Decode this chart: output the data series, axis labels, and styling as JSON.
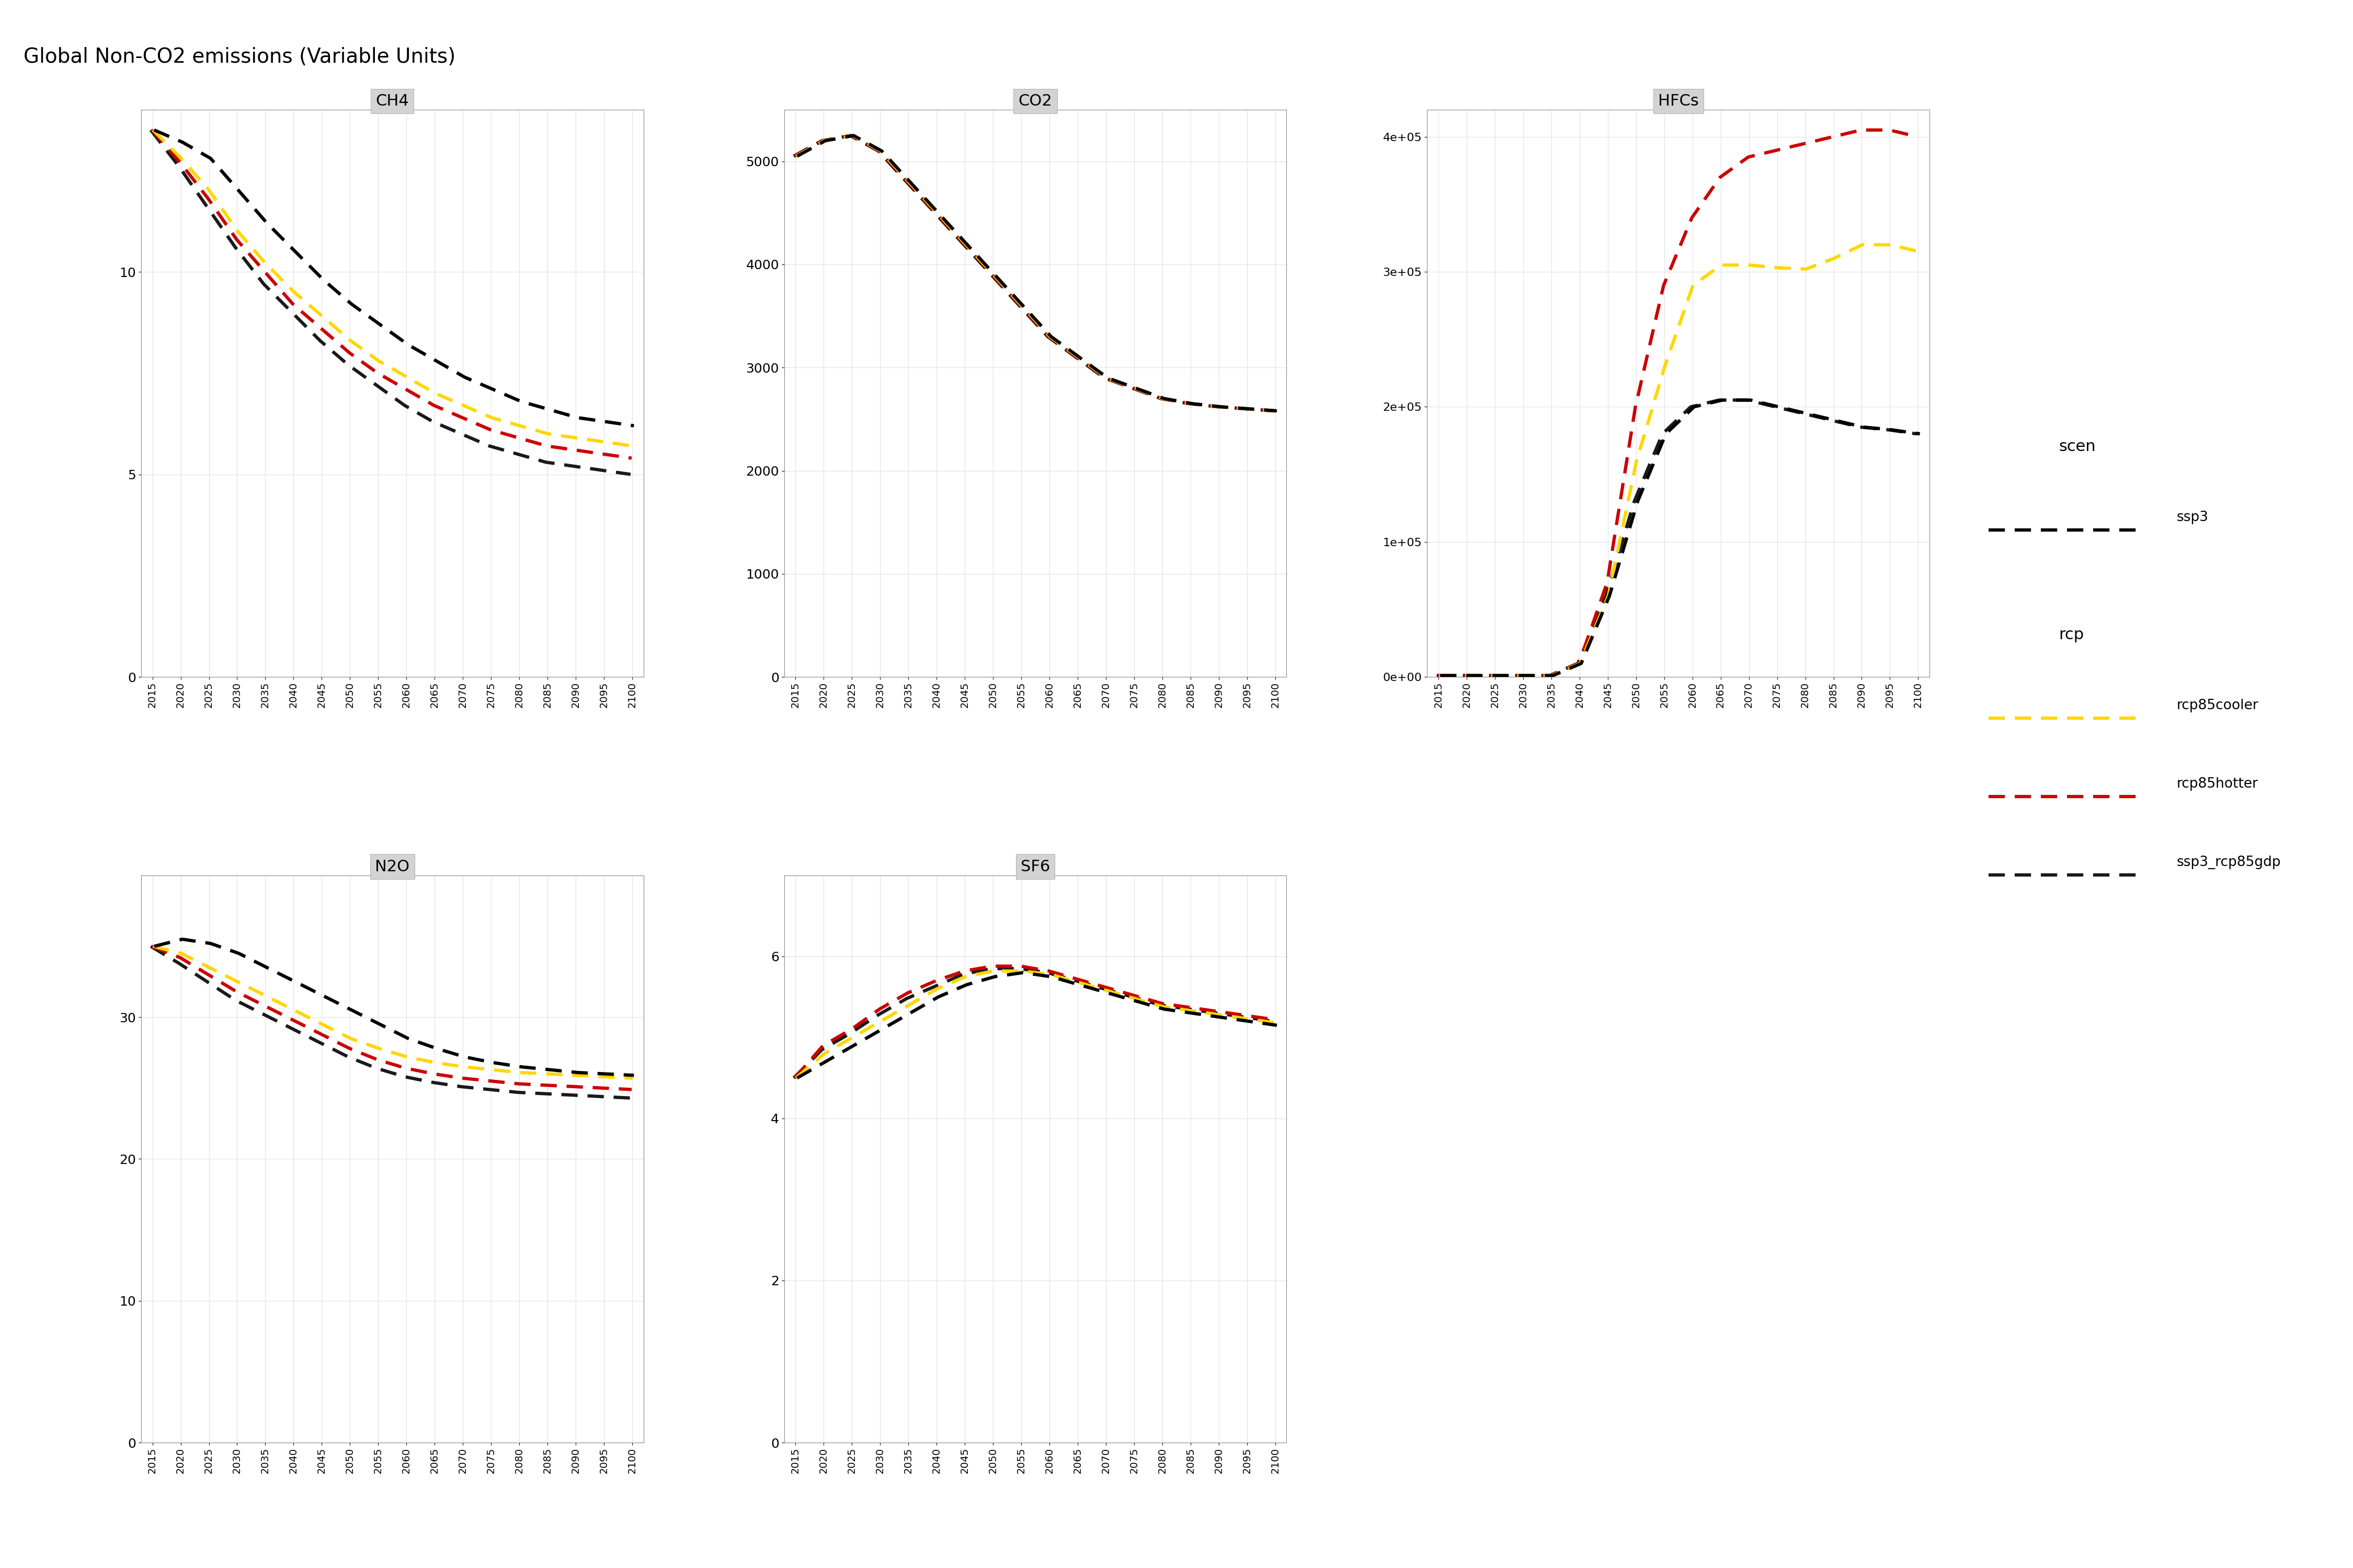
{
  "title": "Global Non-CO2 emissions (Variable Units)",
  "years": [
    2015,
    2020,
    2025,
    2030,
    2035,
    2040,
    2045,
    2050,
    2055,
    2060,
    2065,
    2070,
    2075,
    2080,
    2085,
    2090,
    2095,
    2100
  ],
  "subplots": {
    "CH4": {
      "ylim": [
        0,
        14
      ],
      "yticks": [
        0,
        5,
        10
      ],
      "ssp3": [
        13.5,
        13.2,
        12.8,
        12.0,
        11.2,
        10.5,
        9.8,
        9.2,
        8.7,
        8.2,
        7.8,
        7.4,
        7.1,
        6.8,
        6.6,
        6.4,
        6.3,
        6.2
      ],
      "rcp85cooler": [
        13.5,
        12.8,
        12.0,
        11.0,
        10.2,
        9.5,
        8.9,
        8.3,
        7.8,
        7.4,
        7.0,
        6.7,
        6.4,
        6.2,
        6.0,
        5.9,
        5.8,
        5.7
      ],
      "rcp85hotter": [
        13.5,
        12.7,
        11.8,
        10.8,
        10.0,
        9.2,
        8.6,
        8.0,
        7.5,
        7.1,
        6.7,
        6.4,
        6.1,
        5.9,
        5.7,
        5.6,
        5.5,
        5.4
      ],
      "ssp3_rcp85gdp": [
        13.5,
        12.6,
        11.6,
        10.6,
        9.7,
        9.0,
        8.3,
        7.7,
        7.2,
        6.7,
        6.3,
        6.0,
        5.7,
        5.5,
        5.3,
        5.2,
        5.1,
        5.0
      ]
    },
    "CO2": {
      "ylim": [
        0,
        5500
      ],
      "yticks": [
        0,
        1000,
        2000,
        3000,
        4000,
        5000
      ],
      "ssp3": [
        5050,
        5200,
        5250,
        5100,
        4800,
        4500,
        4200,
        3900,
        3600,
        3300,
        3100,
        2900,
        2800,
        2700,
        2650,
        2620,
        2600,
        2580
      ],
      "rcp85cooler": [
        5050,
        5200,
        5250,
        5100,
        4800,
        4500,
        4200,
        3900,
        3600,
        3300,
        3100,
        2900,
        2800,
        2700,
        2650,
        2620,
        2600,
        2580
      ],
      "rcp85hotter": [
        5050,
        5200,
        5250,
        5100,
        4800,
        4500,
        4200,
        3900,
        3600,
        3300,
        3100,
        2900,
        2800,
        2700,
        2650,
        2620,
        2600,
        2580
      ],
      "ssp3_rcp85gdp": [
        5050,
        5200,
        5250,
        5100,
        4800,
        4500,
        4200,
        3900,
        3600,
        3300,
        3100,
        2900,
        2800,
        2700,
        2650,
        2620,
        2600,
        2580
      ]
    },
    "HFCs": {
      "ylim": [
        0,
        420000
      ],
      "yticks": [
        0,
        100000,
        200000,
        300000,
        400000
      ],
      "ssp3": [
        1000,
        1000,
        1000,
        1000,
        1000,
        10000,
        60000,
        130000,
        180000,
        200000,
        205000,
        205000,
        200000,
        195000,
        190000,
        185000,
        183000,
        180000
      ],
      "rcp85cooler": [
        1000,
        1000,
        1000,
        1000,
        1000,
        10000,
        60000,
        160000,
        230000,
        290000,
        305000,
        305000,
        303000,
        302000,
        310000,
        320000,
        320000,
        315000
      ],
      "rcp85hotter": [
        1000,
        1000,
        1000,
        1000,
        1000,
        10000,
        70000,
        200000,
        290000,
        340000,
        370000,
        385000,
        390000,
        395000,
        400000,
        405000,
        405000,
        400000
      ],
      "ssp3_rcp85gdp": [
        1000,
        1000,
        1000,
        1000,
        1000,
        10000,
        60000,
        130000,
        180000,
        200000,
        205000,
        205000,
        200000,
        195000,
        190000,
        185000,
        183000,
        180000
      ]
    },
    "N2O": {
      "ylim": [
        0,
        40
      ],
      "yticks": [
        0,
        10,
        20,
        30
      ],
      "ssp3": [
        35,
        35.5,
        35.2,
        34.5,
        33.5,
        32.5,
        31.5,
        30.5,
        29.5,
        28.5,
        27.8,
        27.2,
        26.8,
        26.5,
        26.3,
        26.1,
        26.0,
        25.9
      ],
      "rcp85cooler": [
        35,
        34.5,
        33.5,
        32.5,
        31.5,
        30.5,
        29.5,
        28.5,
        27.8,
        27.2,
        26.8,
        26.5,
        26.3,
        26.1,
        26.0,
        25.9,
        25.8,
        25.7
      ],
      "rcp85hotter": [
        35,
        34.2,
        33.0,
        31.8,
        30.8,
        29.8,
        28.8,
        27.8,
        27.0,
        26.4,
        26.0,
        25.7,
        25.5,
        25.3,
        25.2,
        25.1,
        25.0,
        24.9
      ],
      "ssp3_rcp85gdp": [
        35,
        33.8,
        32.5,
        31.2,
        30.2,
        29.2,
        28.2,
        27.2,
        26.4,
        25.8,
        25.4,
        25.1,
        24.9,
        24.7,
        24.6,
        24.5,
        24.4,
        24.3
      ]
    },
    "SF6": {
      "ylim": [
        0,
        7
      ],
      "yticks": [
        0,
        2,
        4,
        6
      ],
      "ssp3": [
        4.5,
        4.7,
        4.9,
        5.1,
        5.3,
        5.5,
        5.65,
        5.75,
        5.8,
        5.75,
        5.65,
        5.55,
        5.45,
        5.35,
        5.3,
        5.25,
        5.2,
        5.15
      ],
      "rcp85cooler": [
        4.5,
        4.8,
        5.0,
        5.2,
        5.4,
        5.6,
        5.75,
        5.82,
        5.82,
        5.78,
        5.68,
        5.58,
        5.48,
        5.38,
        5.33,
        5.28,
        5.23,
        5.18
      ],
      "rcp85hotter": [
        4.5,
        4.9,
        5.1,
        5.35,
        5.55,
        5.7,
        5.82,
        5.88,
        5.88,
        5.82,
        5.72,
        5.62,
        5.52,
        5.42,
        5.37,
        5.32,
        5.27,
        5.22
      ],
      "ssp3_rcp85gdp": [
        4.5,
        4.85,
        5.05,
        5.28,
        5.48,
        5.63,
        5.78,
        5.85,
        5.85,
        5.8,
        5.7,
        5.6,
        5.5,
        5.4,
        5.35,
        5.3,
        5.25,
        5.2
      ]
    }
  },
  "colors": {
    "ssp3": "#000000",
    "rcp85cooler": "#FFD700",
    "rcp85hotter": "#CC0000",
    "ssp3_rcp85gdp": "#000000"
  },
  "line_styles": {
    "ssp3": "--",
    "rcp85cooler": "--",
    "rcp85hotter": "--",
    "ssp3_rcp85gdp": "--"
  },
  "linewidth": 4.5,
  "background_color": "#f5f5f5",
  "panel_bg": "#ffffff",
  "grid_color": "#e0e0e0"
}
